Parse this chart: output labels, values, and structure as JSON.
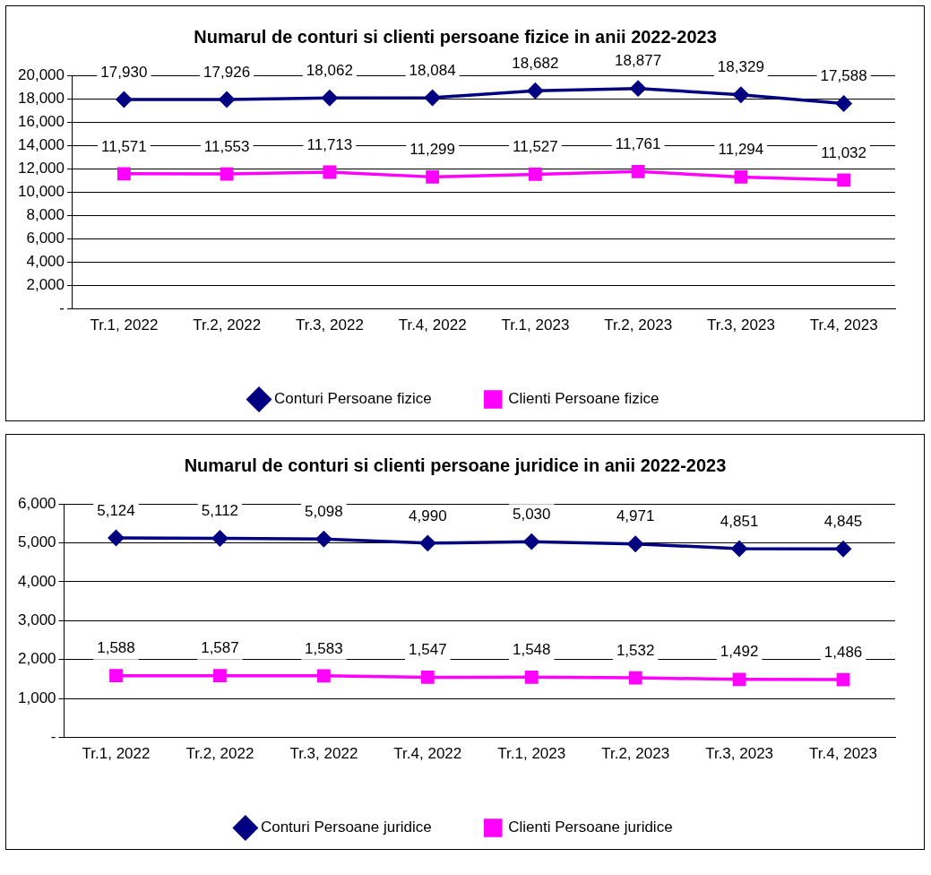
{
  "chart_data": [
    {
      "type": "line",
      "title": "Numarul de conturi si clienti persoane fizice in anii 2022-2023",
      "categories": [
        "Tr.1, 2022",
        "Tr.2, 2022",
        "Tr.3, 2022",
        "Tr.4, 2022",
        "Tr.1, 2023",
        "Tr.2, 2023",
        "Tr.3, 2023",
        "Tr.4, 2023"
      ],
      "series": [
        {
          "name": "Conturi Persoane fizice",
          "color": "#000080",
          "marker": "diamond",
          "values": [
            17930,
            17926,
            18062,
            18084,
            18682,
            18877,
            18329,
            17588
          ],
          "value_labels": [
            "17,930",
            "17,926",
            "18,062",
            "18,084",
            "18,682",
            "18,877",
            "18,329",
            "17,588"
          ]
        },
        {
          "name": "Clienti Persoane fizice",
          "color": "#ff00ff",
          "marker": "square",
          "values": [
            11571,
            11553,
            11713,
            11299,
            11527,
            11761,
            11294,
            11032
          ],
          "value_labels": [
            "11,571",
            "11,553",
            "11,713",
            "11,299",
            "11,527",
            "11,761",
            "11,294",
            "11,032"
          ]
        }
      ],
      "ylim": [
        0,
        20000
      ],
      "yticks": [
        {
          "value": 0,
          "label": "-"
        },
        {
          "value": 2000,
          "label": "2,000"
        },
        {
          "value": 4000,
          "label": "4,000"
        },
        {
          "value": 6000,
          "label": "6,000"
        },
        {
          "value": 8000,
          "label": "8,000"
        },
        {
          "value": 10000,
          "label": "10,000"
        },
        {
          "value": 12000,
          "label": "12,000"
        },
        {
          "value": 14000,
          "label": "14,000"
        },
        {
          "value": 16000,
          "label": "16,000"
        },
        {
          "value": 18000,
          "label": "18,000"
        },
        {
          "value": 20000,
          "label": "20,000"
        }
      ],
      "grid": "y",
      "legend": "bottom"
    },
    {
      "type": "line",
      "title": "Numarul de conturi si clienti persoane juridice in anii 2022-2023",
      "categories": [
        "Tr.1, 2022",
        "Tr.2, 2022",
        "Tr.3, 2022",
        "Tr.4, 2022",
        "Tr.1, 2023",
        "Tr.2, 2023",
        "Tr.3, 2023",
        "Tr.4, 2023"
      ],
      "series": [
        {
          "name": "Conturi Persoane juridice",
          "color": "#000080",
          "marker": "diamond",
          "values": [
            5124,
            5112,
            5098,
            4990,
            5030,
            4971,
            4851,
            4845
          ],
          "value_labels": [
            "5,124",
            "5,112",
            "5,098",
            "4,990",
            "5,030",
            "4,971",
            "4,851",
            "4,845"
          ]
        },
        {
          "name": "Clienti Persoane juridice",
          "color": "#ff00ff",
          "marker": "square",
          "values": [
            1588,
            1587,
            1583,
            1547,
            1548,
            1532,
            1492,
            1486
          ],
          "value_labels": [
            "1,588",
            "1,587",
            "1,583",
            "1,547",
            "1,548",
            "1,532",
            "1,492",
            "1,486"
          ]
        }
      ],
      "ylim": [
        0,
        6000
      ],
      "yticks": [
        {
          "value": 0,
          "label": "-"
        },
        {
          "value": 1000,
          "label": "1,000"
        },
        {
          "value": 2000,
          "label": "2,000"
        },
        {
          "value": 3000,
          "label": "3,000"
        },
        {
          "value": 4000,
          "label": "4,000"
        },
        {
          "value": 5000,
          "label": "5,000"
        },
        {
          "value": 6000,
          "label": "6,000"
        }
      ],
      "grid": "y",
      "legend": "bottom"
    }
  ]
}
